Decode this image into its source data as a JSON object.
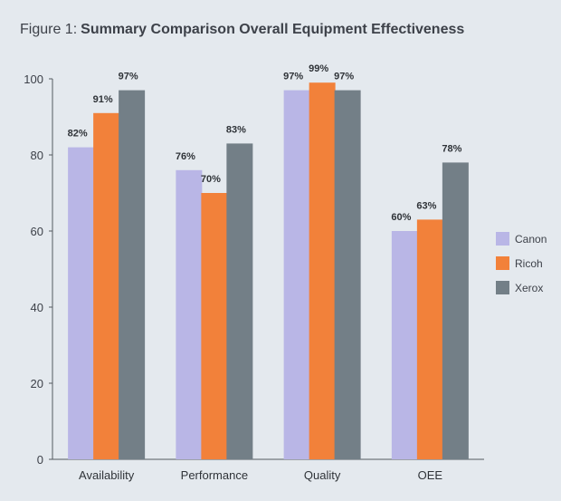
{
  "chart_data": {
    "type": "bar",
    "title_prefix": "Figure 1:",
    "title": "Summary Comparison Overall Equipment Effectiveness",
    "xlabel": "",
    "ylabel": "",
    "categories": [
      "Availability",
      "Performance",
      "Quality",
      "OEE"
    ],
    "series": [
      {
        "name": "Canon",
        "color": "#b9b6e6",
        "values": [
          82,
          76,
          97,
          60
        ],
        "labels": [
          "82%",
          "76%",
          "97%",
          "60%"
        ]
      },
      {
        "name": "Ricoh",
        "color": "#f2813a",
        "values": [
          91,
          70,
          99,
          63
        ],
        "labels": [
          "91%",
          "70%",
          "99%",
          "63%"
        ]
      },
      {
        "name": "Xerox",
        "color": "#737f87",
        "values": [
          97,
          83,
          97,
          78
        ],
        "labels": [
          "97%",
          "83%",
          "97%",
          "78%"
        ]
      }
    ],
    "ylim": [
      0,
      100
    ],
    "yticks": [
      0,
      20,
      40,
      60,
      80,
      100
    ],
    "grid": false,
    "legend": "right"
  }
}
